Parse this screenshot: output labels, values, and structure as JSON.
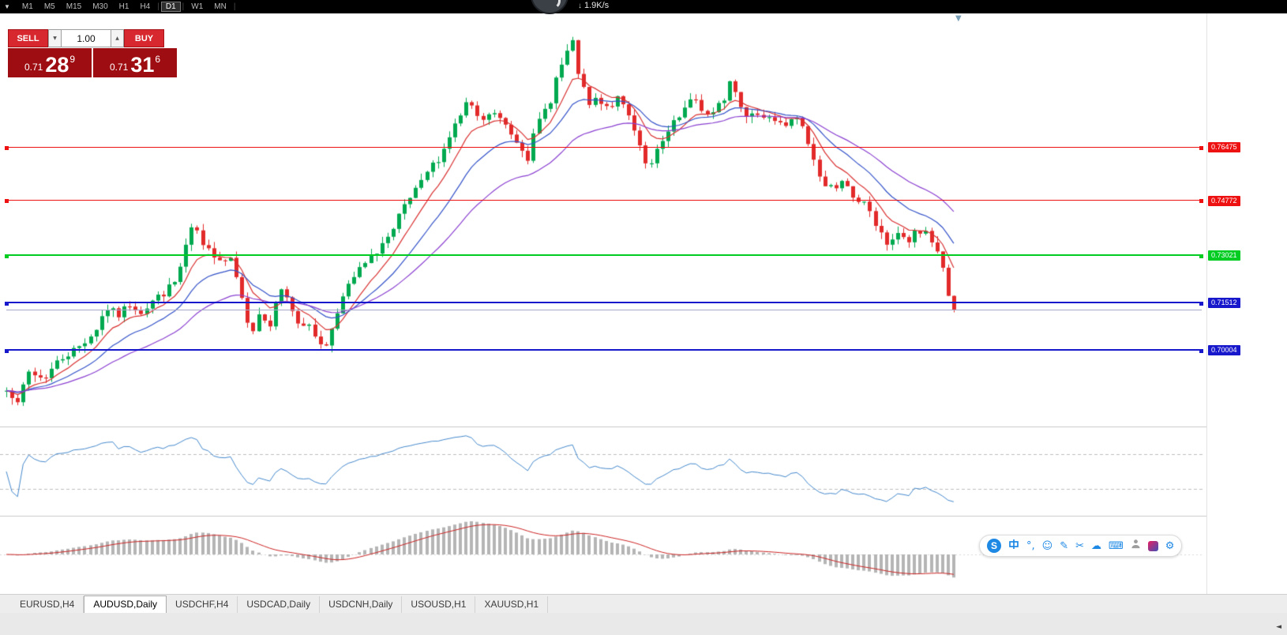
{
  "toolbar": {
    "timeframes": [
      "M1",
      "M5",
      "M15",
      "M30",
      "H1",
      "H4",
      "D1",
      "W1",
      "MN"
    ],
    "active_timeframe": "D1",
    "separators_after": [
      5,
      6,
      8
    ]
  },
  "icons": {
    "dropdown": "▼",
    "spinner_up": "▲",
    "scroll_marker": "▼",
    "tab_scroll_left": "◄",
    "down_arrow": "↓"
  },
  "netspeed": {
    "value": "1.9K/s"
  },
  "trade_panel": {
    "sell_label": "SELL",
    "buy_label": "BUY",
    "volume": "1.00",
    "sell_price": {
      "big_figure": "0.71",
      "pips": "28",
      "pipette": "9"
    },
    "buy_price": {
      "big_figure": "0.71",
      "pips": "31",
      "pipette": "6"
    }
  },
  "chart_data": {
    "type": "candlestick",
    "symbol": "AUDUSD",
    "timeframe": "Daily",
    "seed": 7,
    "candle_count": 170,
    "price_range": {
      "min": 0.6756,
      "max": 0.8074
    },
    "up_color": "#00a94f",
    "down_color": "#e22a2a",
    "ma_lines": [
      {
        "period": 8,
        "color": "#d93030"
      },
      {
        "period": 17,
        "color": "#3352c8"
      },
      {
        "period": 34,
        "color": "#8a3fd0"
      }
    ],
    "hlines": [
      {
        "price": 0.76475,
        "label": "0.76475",
        "color": "#ee1111",
        "width": 1
      },
      {
        "price": 0.74772,
        "label": "0.74772",
        "color": "#ee1111",
        "width": 1
      },
      {
        "price": 0.73021,
        "label": "0.73021",
        "color": "#00cc22",
        "width": 2
      },
      {
        "price": 0.71512,
        "label": "0.71512",
        "color": "#1717cc",
        "width": 2
      },
      {
        "price": 0.70004,
        "label": "0.70004",
        "color": "#1717cc",
        "width": 2
      }
    ],
    "bid_line": {
      "price": 0.71289,
      "color": "#a7a7c8",
      "width": 1
    },
    "indicator1": {
      "name": "RSI",
      "period": 14,
      "levels": [
        70,
        30
      ],
      "color": "#4488cc"
    },
    "indicator2": {
      "name": "MACD",
      "color_hist": "#b5b5b5",
      "color_signal": "#cc2222"
    },
    "price_path": [
      [
        0.002,
        0.6883
      ],
      [
        0.012,
        0.682
      ],
      [
        0.022,
        0.6933
      ],
      [
        0.039,
        0.6908
      ],
      [
        0.056,
        0.6971
      ],
      [
        0.076,
        0.7009
      ],
      [
        0.093,
        0.7059
      ],
      [
        0.105,
        0.7135
      ],
      [
        0.118,
        0.711
      ],
      [
        0.13,
        0.7147
      ],
      [
        0.143,
        0.7122
      ],
      [
        0.155,
        0.716
      ],
      [
        0.167,
        0.7185
      ],
      [
        0.18,
        0.7223
      ],
      [
        0.192,
        0.7362
      ],
      [
        0.199,
        0.7399
      ],
      [
        0.207,
        0.7324
      ],
      [
        0.217,
        0.7311
      ],
      [
        0.229,
        0.7286
      ],
      [
        0.238,
        0.7298
      ],
      [
        0.25,
        0.716
      ],
      [
        0.257,
        0.7034
      ],
      [
        0.267,
        0.7122
      ],
      [
        0.279,
        0.7059
      ],
      [
        0.287,
        0.7197
      ],
      [
        0.296,
        0.7172
      ],
      [
        0.306,
        0.7096
      ],
      [
        0.316,
        0.7084
      ],
      [
        0.329,
        0.7034
      ],
      [
        0.337,
        0.7008
      ],
      [
        0.348,
        0.7122
      ],
      [
        0.358,
        0.7185
      ],
      [
        0.37,
        0.7248
      ],
      [
        0.383,
        0.7286
      ],
      [
        0.395,
        0.7336
      ],
      [
        0.408,
        0.7374
      ],
      [
        0.416,
        0.7437
      ],
      [
        0.424,
        0.7475
      ],
      [
        0.437,
        0.7525
      ],
      [
        0.445,
        0.7575
      ],
      [
        0.453,
        0.76
      ],
      [
        0.461,
        0.7638
      ],
      [
        0.47,
        0.7701
      ],
      [
        0.478,
        0.7739
      ],
      [
        0.486,
        0.7789
      ],
      [
        0.495,
        0.7752
      ],
      [
        0.503,
        0.7726
      ],
      [
        0.511,
        0.7764
      ],
      [
        0.519,
        0.7739
      ],
      [
        0.528,
        0.7714
      ],
      [
        0.536,
        0.7676
      ],
      [
        0.544,
        0.7651
      ],
      [
        0.55,
        0.7613
      ],
      [
        0.557,
        0.7688
      ],
      [
        0.565,
        0.7752
      ],
      [
        0.573,
        0.7789
      ],
      [
        0.582,
        0.789
      ],
      [
        0.59,
        0.7928
      ],
      [
        0.596,
        0.8003
      ],
      [
        0.602,
        0.7903
      ],
      [
        0.608,
        0.784
      ],
      [
        0.615,
        0.7777
      ],
      [
        0.623,
        0.7802
      ],
      [
        0.631,
        0.7764
      ],
      [
        0.64,
        0.7789
      ],
      [
        0.648,
        0.7802
      ],
      [
        0.656,
        0.7752
      ],
      [
        0.664,
        0.7701
      ],
      [
        0.673,
        0.7613
      ],
      [
        0.679,
        0.7575
      ],
      [
        0.685,
        0.7626
      ],
      [
        0.693,
        0.7664
      ],
      [
        0.702,
        0.7714
      ],
      [
        0.71,
        0.7739
      ],
      [
        0.718,
        0.7777
      ],
      [
        0.727,
        0.7802
      ],
      [
        0.735,
        0.7764
      ],
      [
        0.743,
        0.7739
      ],
      [
        0.751,
        0.7777
      ],
      [
        0.76,
        0.7815
      ],
      [
        0.765,
        0.7877
      ],
      [
        0.772,
        0.7789
      ],
      [
        0.78,
        0.7752
      ],
      [
        0.789,
        0.7764
      ],
      [
        0.797,
        0.7739
      ],
      [
        0.805,
        0.7752
      ],
      [
        0.814,
        0.7739
      ],
      [
        0.822,
        0.7726
      ],
      [
        0.83,
        0.7752
      ],
      [
        0.838,
        0.7714
      ],
      [
        0.847,
        0.7664
      ],
      [
        0.855,
        0.7588
      ],
      [
        0.862,
        0.7513
      ],
      [
        0.867,
        0.7538
      ],
      [
        0.873,
        0.75
      ],
      [
        0.88,
        0.755
      ],
      [
        0.886,
        0.7525
      ],
      [
        0.892,
        0.7487
      ],
      [
        0.898,
        0.7462
      ],
      [
        0.905,
        0.7475
      ],
      [
        0.911,
        0.7437
      ],
      [
        0.917,
        0.7399
      ],
      [
        0.923,
        0.7374
      ],
      [
        0.93,
        0.7336
      ],
      [
        0.938,
        0.7362
      ],
      [
        0.946,
        0.7374
      ],
      [
        0.953,
        0.7349
      ],
      [
        0.959,
        0.7374
      ],
      [
        0.964,
        0.7362
      ],
      [
        0.971,
        0.7374
      ],
      [
        0.978,
        0.7336
      ],
      [
        0.984,
        0.7311
      ],
      [
        0.992,
        0.7197
      ],
      [
        1.0,
        0.7129
      ]
    ]
  },
  "tabs": {
    "items": [
      {
        "label": "EURUSD,H4",
        "active": false
      },
      {
        "label": "AUDUSD,Daily",
        "active": true
      },
      {
        "label": "USDCHF,H4",
        "active": false
      },
      {
        "label": "USDCAD,Daily",
        "active": false
      },
      {
        "label": "USDCNH,Daily",
        "active": false
      },
      {
        "label": "USOUSD,H1",
        "active": false
      },
      {
        "label": "XAUUSD,H1",
        "active": false
      }
    ]
  },
  "ime_toolbar": {
    "chinese_mode_label": "中",
    "icons": [
      {
        "name": "sogou-logo-icon",
        "type": "logo",
        "glyph": "S",
        "color": "#1e88e5"
      },
      {
        "name": "chinese-mode-icon",
        "type": "chinese",
        "glyph": "中",
        "color": "#1e88e5"
      },
      {
        "name": "punctuation-icon",
        "type": "text",
        "glyph": "°,",
        "color": "#1e88e5"
      },
      {
        "name": "emoji-icon",
        "type": "text",
        "glyph": "☺",
        "color": "#1e88e5"
      },
      {
        "name": "handwriting-pen-icon",
        "type": "text",
        "glyph": "✎",
        "color": "#1e88e5"
      },
      {
        "name": "screenshot-scissors-icon",
        "type": "text",
        "glyph": "✂",
        "color": "#1e88e5"
      },
      {
        "name": "cloud-icon",
        "type": "text",
        "glyph": "☁",
        "color": "#1e88e5"
      },
      {
        "name": "keyboard-icon",
        "type": "text",
        "glyph": "⌨",
        "color": "#1e88e5"
      },
      {
        "name": "user-icon",
        "type": "person",
        "glyph": "",
        "color": "#9e9e9e"
      },
      {
        "name": "skin-icon",
        "type": "skin",
        "glyph": "",
        "color": "#e91e63"
      },
      {
        "name": "settings-gear-icon",
        "type": "text",
        "glyph": "⚙",
        "color": "#1e88e5"
      }
    ]
  }
}
